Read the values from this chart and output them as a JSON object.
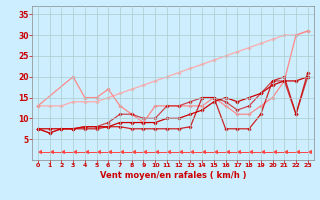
{
  "background_color": "#cceeff",
  "grid_color": "#aacccc",
  "xlabel": "Vent moyen/en rafales ( km/h )",
  "xlim": [
    -0.5,
    23.5
  ],
  "ylim": [
    0,
    37
  ],
  "yticks": [
    5,
    10,
    15,
    20,
    25,
    30,
    35
  ],
  "xticks": [
    0,
    1,
    2,
    3,
    4,
    5,
    6,
    7,
    8,
    9,
    10,
    11,
    12,
    13,
    14,
    15,
    16,
    17,
    18,
    19,
    20,
    21,
    22,
    23
  ],
  "series": [
    {
      "x": [
        0,
        1,
        2,
        3,
        4,
        5,
        6,
        7,
        8,
        9,
        10,
        11,
        12,
        13,
        14,
        15,
        16,
        17,
        18,
        19,
        20,
        21,
        22,
        23
      ],
      "y": [
        13,
        13,
        13,
        14,
        14,
        14,
        15,
        16,
        17,
        18,
        19,
        20,
        21,
        22,
        23,
        24,
        25,
        26,
        27,
        28,
        29,
        30,
        30,
        31
      ],
      "color": "#ffaaaa",
      "lw": 0.9,
      "marker": "D",
      "ms": 1.8,
      "alpha": 1.0
    },
    {
      "x": [
        0,
        3,
        4,
        5,
        6,
        7,
        8,
        9,
        10,
        11,
        12,
        13,
        14,
        15,
        16,
        17,
        18,
        19,
        20,
        21,
        22,
        23
      ],
      "y": [
        13,
        20,
        15,
        15,
        17,
        13,
        11,
        9,
        13,
        13,
        13,
        13,
        13,
        15,
        13,
        11,
        11,
        13,
        15,
        19,
        30,
        31
      ],
      "color": "#ff8888",
      "lw": 0.9,
      "marker": "D",
      "ms": 1.8,
      "alpha": 1.0
    },
    {
      "x": [
        0,
        1,
        2,
        3,
        4,
        5,
        6,
        7,
        8,
        9,
        10,
        11,
        12,
        13,
        14,
        15,
        16,
        17,
        18,
        19,
        20,
        21,
        22,
        23
      ],
      "y": [
        7.5,
        7.5,
        7.5,
        7.5,
        8,
        8,
        8,
        9,
        9,
        9,
        9,
        10,
        10,
        11,
        12,
        14,
        15,
        14,
        15,
        16,
        18,
        19,
        19,
        20
      ],
      "color": "#cc0000",
      "lw": 0.9,
      "marker": "D",
      "ms": 1.8,
      "alpha": 1.0
    },
    {
      "x": [
        0,
        1,
        2,
        3,
        4,
        5,
        6,
        7,
        8,
        9,
        10,
        11,
        12,
        13,
        14,
        15,
        16,
        17,
        18,
        19,
        20,
        21,
        22,
        23
      ],
      "y": [
        7.5,
        6.5,
        7.5,
        7.5,
        7.5,
        7.5,
        8,
        8,
        7.5,
        7.5,
        7.5,
        7.5,
        7.5,
        8,
        15,
        15,
        7.5,
        7.5,
        7.5,
        11,
        19,
        20,
        11,
        21
      ],
      "color": "#cc0000",
      "lw": 0.9,
      "marker": "D",
      "ms": 1.8,
      "alpha": 0.85
    },
    {
      "x": [
        0,
        1,
        2,
        3,
        4,
        5,
        6,
        7,
        8,
        9,
        10,
        11,
        12,
        13,
        14,
        15,
        16,
        17,
        18,
        19,
        20,
        21,
        22,
        23
      ],
      "y": [
        7.5,
        6.5,
        7.5,
        7.5,
        8,
        8,
        9,
        11,
        11,
        10,
        10,
        13,
        13,
        14,
        15,
        15,
        14,
        12,
        13,
        16,
        19,
        19,
        11,
        20
      ],
      "color": "#cc0000",
      "lw": 0.9,
      "marker": "D",
      "ms": 1.8,
      "alpha": 0.7
    },
    {
      "x": [
        0,
        1,
        2,
        3,
        4,
        5,
        6,
        7,
        8,
        9,
        10,
        11,
        12,
        13,
        14,
        15,
        16,
        17,
        18,
        19,
        20,
        21,
        22,
        23
      ],
      "y": [
        2,
        2,
        2,
        2,
        2,
        2,
        2,
        2,
        2,
        2,
        2,
        2,
        2,
        2,
        2,
        2,
        2,
        2,
        2,
        2,
        2,
        2,
        2,
        2
      ],
      "color": "#ff4444",
      "lw": 0.7,
      "marker": 4,
      "ms": 3.5,
      "alpha": 1.0
    }
  ]
}
